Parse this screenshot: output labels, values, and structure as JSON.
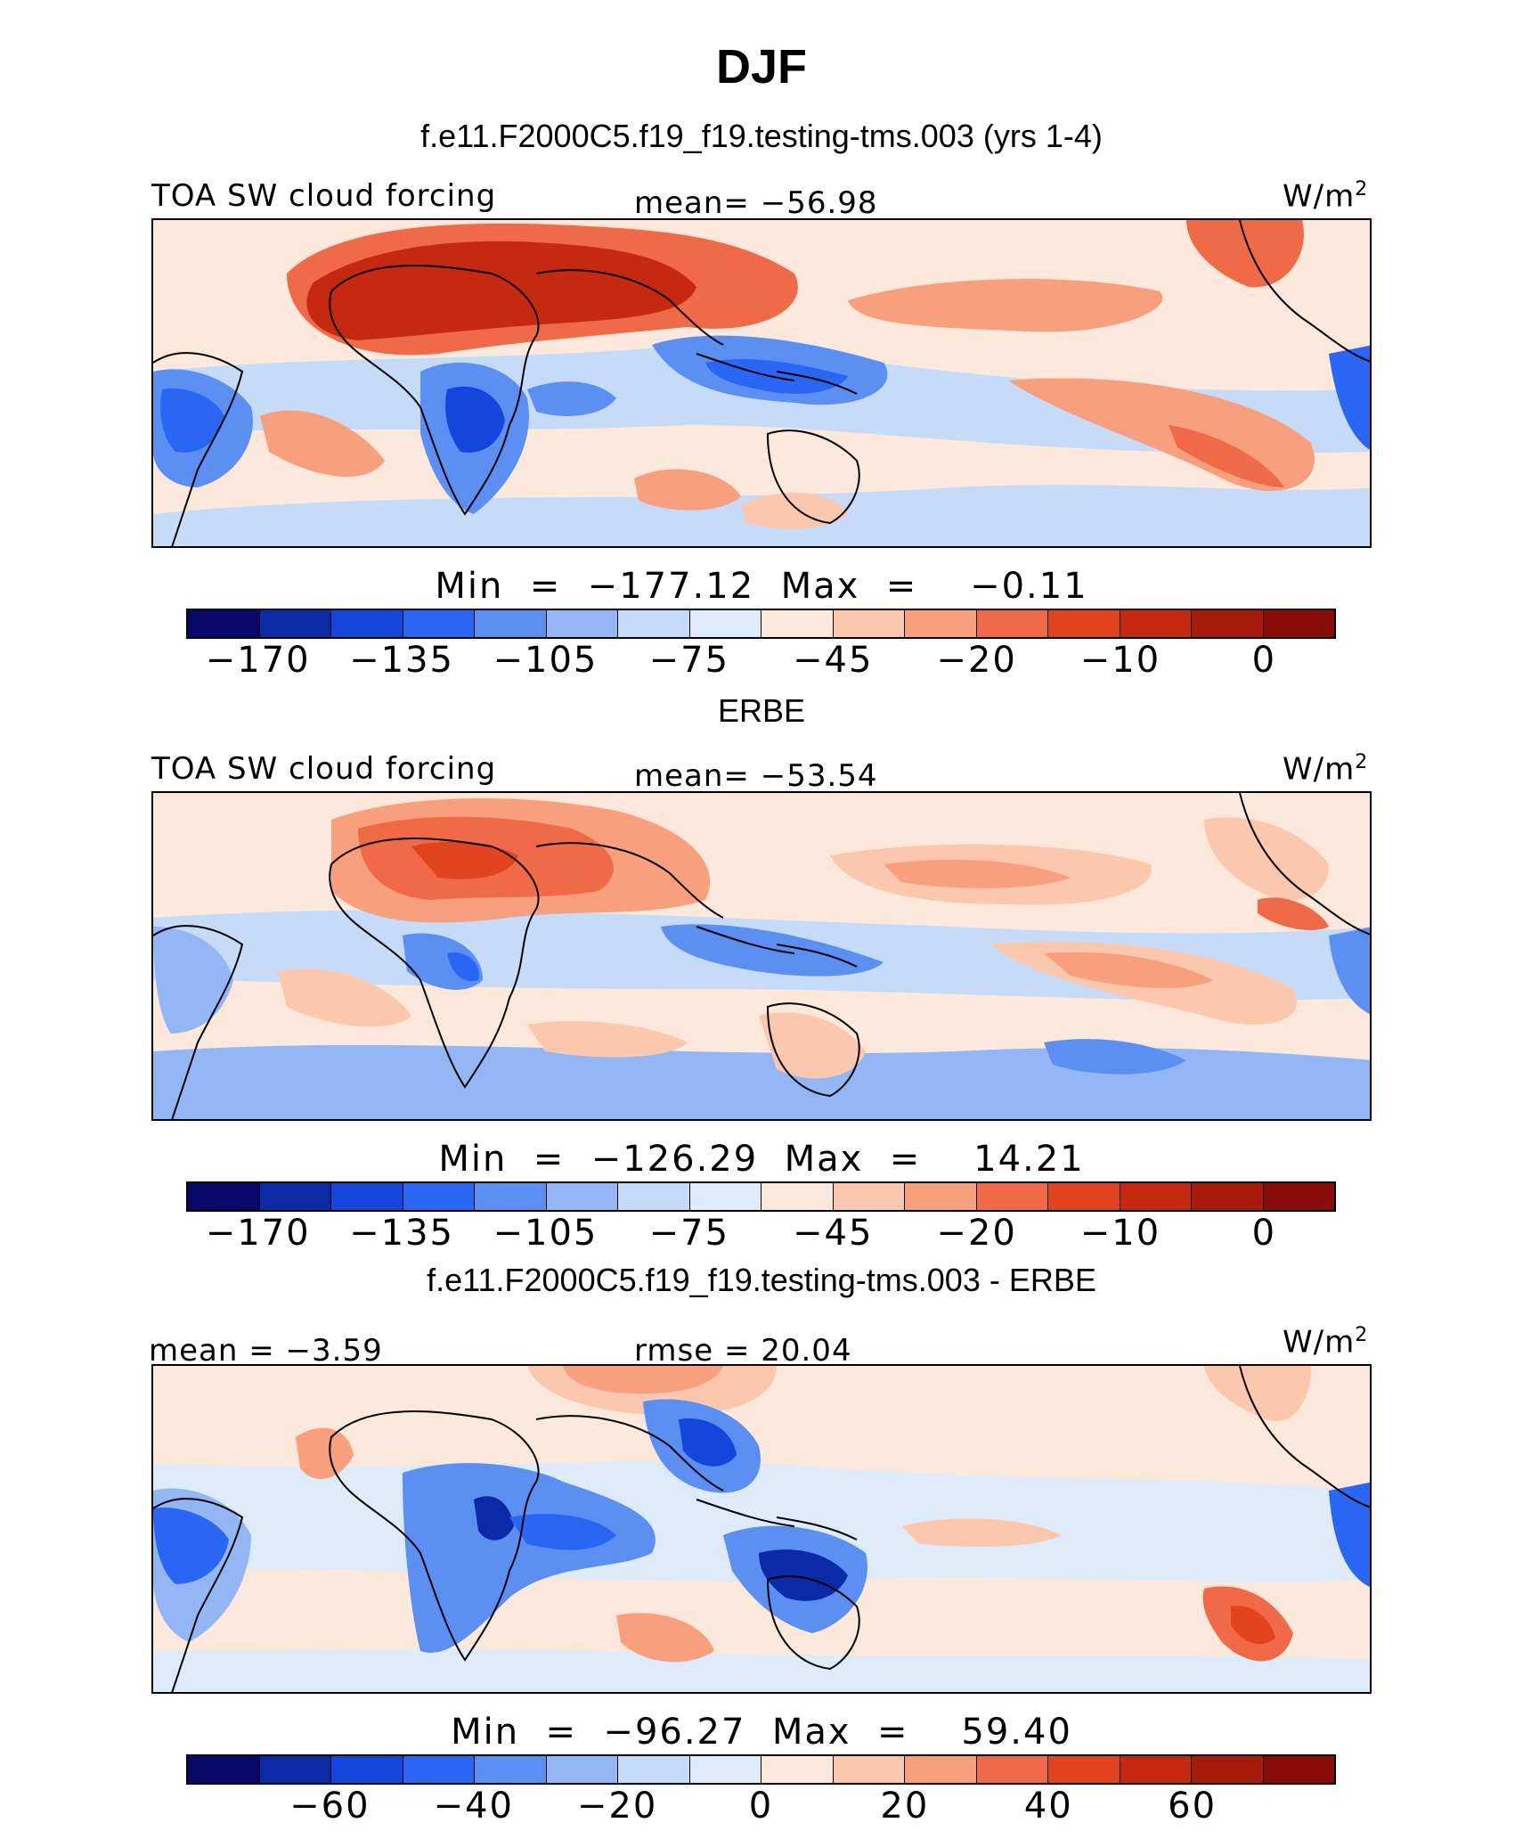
{
  "figure": {
    "season": "DJF",
    "panel1_title": "f.e11.F2000C5.f19_f19.testing-tms.003 (yrs 1-4)",
    "panel2_title": "ERBE",
    "panel3_title": "f.e11.F2000C5.f19_f19.testing-tms.003 - ERBE"
  },
  "panels": [
    {
      "left_label": "TOA SW cloud forcing",
      "center_label": "mean= −56.98",
      "units": "W/m",
      "units_sup": "2",
      "minmax": "Min  =  −177.12  Max  =    −0.11",
      "ticks": [
        "−170",
        "−135",
        "−105",
        "−75",
        "−45",
        "−20",
        "−10",
        "0"
      ]
    },
    {
      "left_label": "TOA SW cloud forcing",
      "center_label": "mean= −53.54",
      "units": "W/m",
      "units_sup": "2",
      "minmax": "Min  =  −126.29  Max  =    14.21",
      "ticks": [
        "−170",
        "−135",
        "−105",
        "−75",
        "−45",
        "−20",
        "−10",
        "0"
      ]
    },
    {
      "left_label": "mean =   −3.59",
      "center_label": "rmse  =   20.04",
      "units": "W/m",
      "units_sup": "2",
      "minmax": "Min  =  −96.27  Max  =    59.40",
      "ticks": [
        "−60",
        "−40",
        "−20",
        "0",
        "20",
        "40",
        "60"
      ]
    }
  ],
  "colorbar_colors": [
    "#08086b",
    "#0a2aa8",
    "#1446dc",
    "#2a66f4",
    "#5b8ff2",
    "#93b6f4",
    "#c6dbf7",
    "#deebfb",
    "#fde8dc",
    "#fbc7ad",
    "#f89f7e",
    "#f06a48",
    "#e2441f",
    "#c52a10",
    "#a81a0c",
    "#8a0c06"
  ]
}
